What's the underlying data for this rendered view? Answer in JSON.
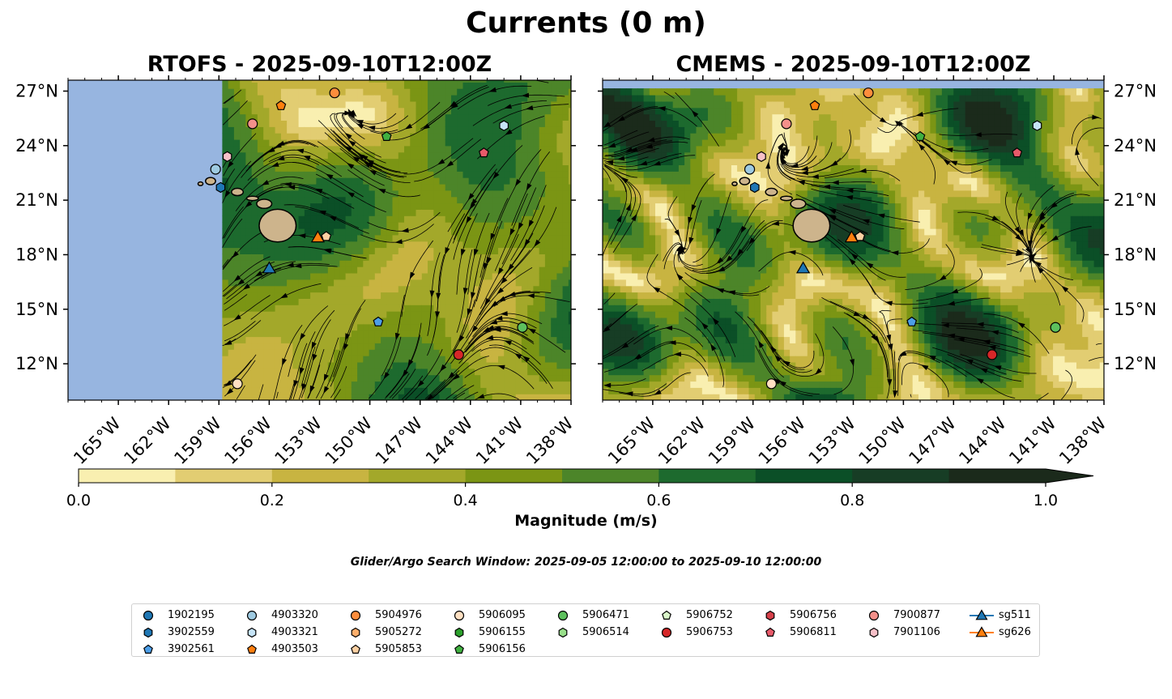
{
  "figure": {
    "suptitle": "Currents (0 m)",
    "search_window": "Glider/Argo Search Window: 2025-09-05 12:00:00 to 2025-09-10 12:00:00"
  },
  "colors": {
    "ocean_land_mask": "#97b5e0",
    "land": "#cdb48c",
    "cbar": [
      "#f9efb0",
      "#e2cd72",
      "#c8b441",
      "#a3a82a",
      "#7b9514",
      "#4c8529",
      "#1d6a2e",
      "#0b4f27",
      "#173d25",
      "#1b2a1b"
    ]
  },
  "chart_data": [
    {
      "type": "streamplot",
      "title": "RTOFS - 2025-09-10T12:00Z",
      "xlim": [
        -168,
        -138
      ],
      "ylim": [
        10,
        27.6
      ],
      "data_xmin": -158.8,
      "xticks": [
        -165,
        -162,
        -159,
        -156,
        -153,
        -150,
        -147,
        -144,
        -141,
        -138
      ],
      "xtick_labels": [
        "165°W",
        "162°W",
        "159°W",
        "156°W",
        "153°W",
        "150°W",
        "147°W",
        "144°W",
        "141°W",
        "138°W"
      ],
      "yticks": [
        12,
        15,
        18,
        21,
        24,
        27
      ],
      "ytick_labels": [
        "12°N",
        "15°N",
        "18°N",
        "21°N",
        "24°N",
        "27°N"
      ],
      "ytick_side": "left"
    },
    {
      "type": "streamplot",
      "title": "CMEMS - 2025-09-10T12:00Z",
      "xlim": [
        -168,
        -138
      ],
      "ylim": [
        10,
        27.6
      ],
      "data_ymax": 27.0,
      "xticks": [
        -165,
        -162,
        -159,
        -156,
        -153,
        -150,
        -147,
        -144,
        -141,
        -138
      ],
      "xtick_labels": [
        "165°W",
        "162°W",
        "159°W",
        "156°W",
        "153°W",
        "150°W",
        "147°W",
        "144°W",
        "141°W",
        "138°W"
      ],
      "yticks": [
        12,
        15,
        18,
        21,
        24,
        27
      ],
      "ytick_labels": [
        "12°N",
        "15°N",
        "18°N",
        "21°N",
        "24°N",
        "27°N"
      ],
      "ytick_side": "right"
    }
  ],
  "colorbar": {
    "label": "Magnitude (m/s)",
    "levels": [
      0,
      0.1,
      0.2,
      0.3,
      0.4,
      0.5,
      0.6,
      0.7,
      0.8,
      0.9,
      1.0
    ],
    "ticks": [
      0.0,
      0.2,
      0.4,
      0.6,
      0.8,
      1.0
    ],
    "tick_labels": [
      "0.0",
      "0.2",
      "0.4",
      "0.6",
      "0.8",
      "1.0"
    ],
    "extend": "max"
  },
  "platforms": [
    {
      "id": "1902195",
      "marker": "circle",
      "color": "#1f77b4",
      "lon": null,
      "lat": null
    },
    {
      "id": "3902559",
      "marker": "hexagon",
      "color": "#1f77b4",
      "lon": -158.9,
      "lat": 21.7
    },
    {
      "id": "3902561",
      "marker": "pentagon",
      "color": "#4c9ee8",
      "lon": -149.5,
      "lat": 14.3
    },
    {
      "id": "4903320",
      "marker": "circle",
      "color": "#9ecae1",
      "lon": -159.2,
      "lat": 22.7
    },
    {
      "id": "4903321",
      "marker": "hexagon",
      "color": "#c6e4f7",
      "lon": -142.0,
      "lat": 25.1
    },
    {
      "id": "4903503",
      "marker": "pentagon",
      "color": "#ff7f0e",
      "lon": -155.3,
      "lat": 26.2
    },
    {
      "id": "5904976",
      "marker": "circle",
      "color": "#fd8d3c",
      "lon": -152.1,
      "lat": 26.9
    },
    {
      "id": "5905272",
      "marker": "hexagon",
      "color": "#fdae6b",
      "lon": null,
      "lat": null
    },
    {
      "id": "5905853",
      "marker": "pentagon",
      "color": "#fdd0a2",
      "lon": -152.6,
      "lat": 19.0
    },
    {
      "id": "5906095",
      "marker": "circle",
      "color": "#ffe0c2",
      "lon": -157.9,
      "lat": 10.9
    },
    {
      "id": "5906155",
      "marker": "hexagon",
      "color": "#2ca02c",
      "lon": null,
      "lat": null
    },
    {
      "id": "5906156",
      "marker": "pentagon",
      "color": "#40b040",
      "lon": -149.0,
      "lat": 24.5
    },
    {
      "id": "5906471",
      "marker": "circle",
      "color": "#5dc05d",
      "lon": -140.9,
      "lat": 14.0
    },
    {
      "id": "5906514",
      "marker": "hexagon",
      "color": "#98df8a",
      "lon": null,
      "lat": null
    },
    {
      "id": "5906752",
      "marker": "pentagon",
      "color": "#d9f5c9",
      "lon": null,
      "lat": null
    },
    {
      "id": "5906753",
      "marker": "circle",
      "color": "#d62728",
      "lon": -144.7,
      "lat": 12.5
    },
    {
      "id": "5906756",
      "marker": "hexagon",
      "color": "#d6404a",
      "lon": null,
      "lat": null
    },
    {
      "id": "5906811",
      "marker": "pentagon",
      "color": "#e85a6a",
      "lon": -143.2,
      "lat": 23.6
    },
    {
      "id": "7900877",
      "marker": "circle",
      "color": "#f4908a",
      "lon": -157.0,
      "lat": 25.2
    },
    {
      "id": "7901106",
      "marker": "hexagon",
      "color": "#f7c0c8",
      "lon": -158.5,
      "lat": 23.4
    },
    {
      "id": "sg511",
      "marker": "triangle",
      "color": "#1f77b4",
      "lon": -156.0,
      "lat": 17.2
    },
    {
      "id": "sg626",
      "marker": "triangle",
      "color": "#ff7f0e",
      "lon": -153.1,
      "lat": 18.9
    }
  ]
}
